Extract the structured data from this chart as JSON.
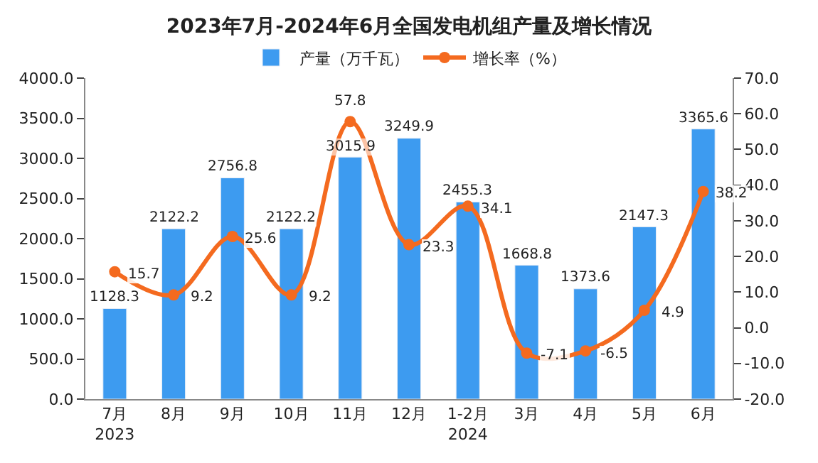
{
  "chart_data": {
    "type": "bar",
    "title": "2023年7月-2024年6月全国发电机组产量及增长情况",
    "categories": [
      "7月\n2023",
      "8月",
      "9月",
      "10月",
      "11月",
      "12月",
      "1-2月\n2024",
      "3月",
      "4月",
      "5月",
      "6月"
    ],
    "series": [
      {
        "name": "产量（万千瓦）",
        "color": "#3d9bf0",
        "values": [
          1128.3,
          2122.2,
          2756.8,
          2122.2,
          3015.9,
          3249.9,
          2455.3,
          1668.8,
          1373.6,
          2147.3,
          3365.6
        ]
      },
      {
        "name": "增长率（%）",
        "color": "#f46a1f",
        "type": "line",
        "axis": "y2",
        "marker": "circle",
        "line_style": "solid",
        "values": [
          15.7,
          9.2,
          25.6,
          9.2,
          57.8,
          23.3,
          34.1,
          -7.1,
          -6.5,
          4.9,
          38.2
        ]
      }
    ],
    "ylim": [
      0,
      4000
    ],
    "yticks": [
      {
        "value": 0,
        "label": "0.0"
      },
      {
        "value": 500,
        "label": "500.0"
      },
      {
        "value": 1000,
        "label": "1000.0"
      },
      {
        "value": 1500,
        "label": "1500.0"
      },
      {
        "value": 2000,
        "label": "2000.0"
      },
      {
        "value": 2500,
        "label": "2500.0"
      },
      {
        "value": 3000,
        "label": "3000.0"
      },
      {
        "value": 3500,
        "label": "3500.0"
      },
      {
        "value": 4000,
        "label": "4000.0"
      }
    ],
    "y2lim": [
      -20,
      70
    ],
    "y2ticks": [
      {
        "value": -20,
        "label": "-20.0"
      },
      {
        "value": -10,
        "label": "-10.0"
      },
      {
        "value": 0,
        "label": "0.0"
      },
      {
        "value": 10,
        "label": "10.0"
      },
      {
        "value": 20,
        "label": "20.0"
      },
      {
        "value": 30,
        "label": "30.0"
      },
      {
        "value": 40,
        "label": "40.0"
      },
      {
        "value": 50,
        "label": "50.0"
      },
      {
        "value": 60,
        "label": "60.0"
      },
      {
        "value": 70,
        "label": "70.0"
      }
    ],
    "data_labels": true,
    "legend": "top"
  }
}
